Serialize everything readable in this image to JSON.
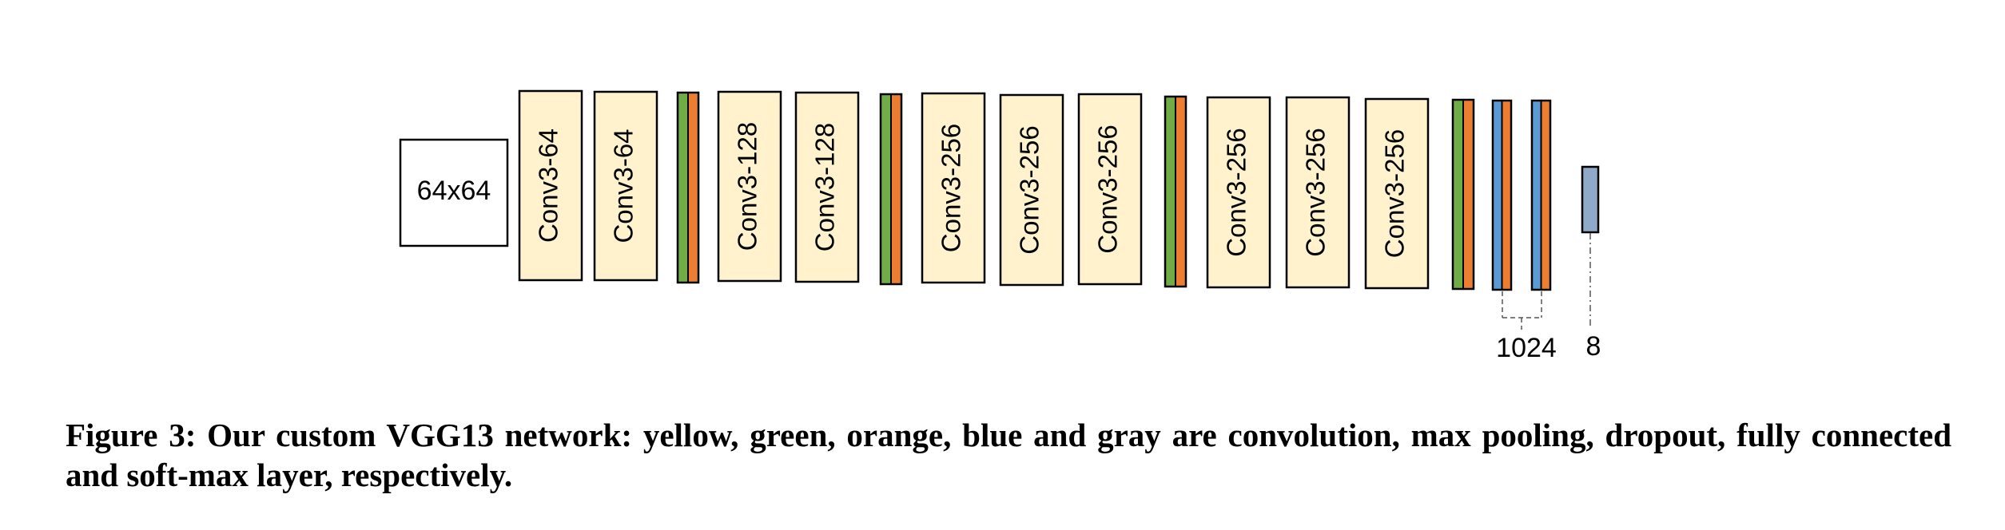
{
  "diagram": {
    "input_label": "64x64",
    "layers": [
      {
        "type": "conv",
        "label": "Conv3-64"
      },
      {
        "type": "conv",
        "label": "Conv3-64"
      },
      {
        "type": "pool_dropout"
      },
      {
        "type": "conv",
        "label": "Conv3-128"
      },
      {
        "type": "conv",
        "label": "Conv3-128"
      },
      {
        "type": "pool_dropout"
      },
      {
        "type": "conv",
        "label": "Conv3-256"
      },
      {
        "type": "conv",
        "label": "Conv3-256"
      },
      {
        "type": "conv",
        "label": "Conv3-256"
      },
      {
        "type": "pool_dropout"
      },
      {
        "type": "conv",
        "label": "Conv3-256"
      },
      {
        "type": "conv",
        "label": "Conv3-256"
      },
      {
        "type": "conv",
        "label": "Conv3-256"
      },
      {
        "type": "pool_dropout"
      },
      {
        "type": "fc_dropout"
      },
      {
        "type": "fc_dropout"
      },
      {
        "type": "softmax"
      }
    ],
    "fc_size_label": "1024",
    "softmax_size_label": "8",
    "colors": {
      "conv": "#fff2cc",
      "pool": "#70ad47",
      "dropout": "#ed7d31",
      "fc": "#5b9bd5",
      "softmax": "#8fa9c9",
      "stroke": "#000000"
    }
  },
  "caption": "Figure 3: Our custom VGG13 network: yellow, green, orange, blue and gray are convolution, max pooling, dropout, fully connected and soft-max layer, respectively."
}
